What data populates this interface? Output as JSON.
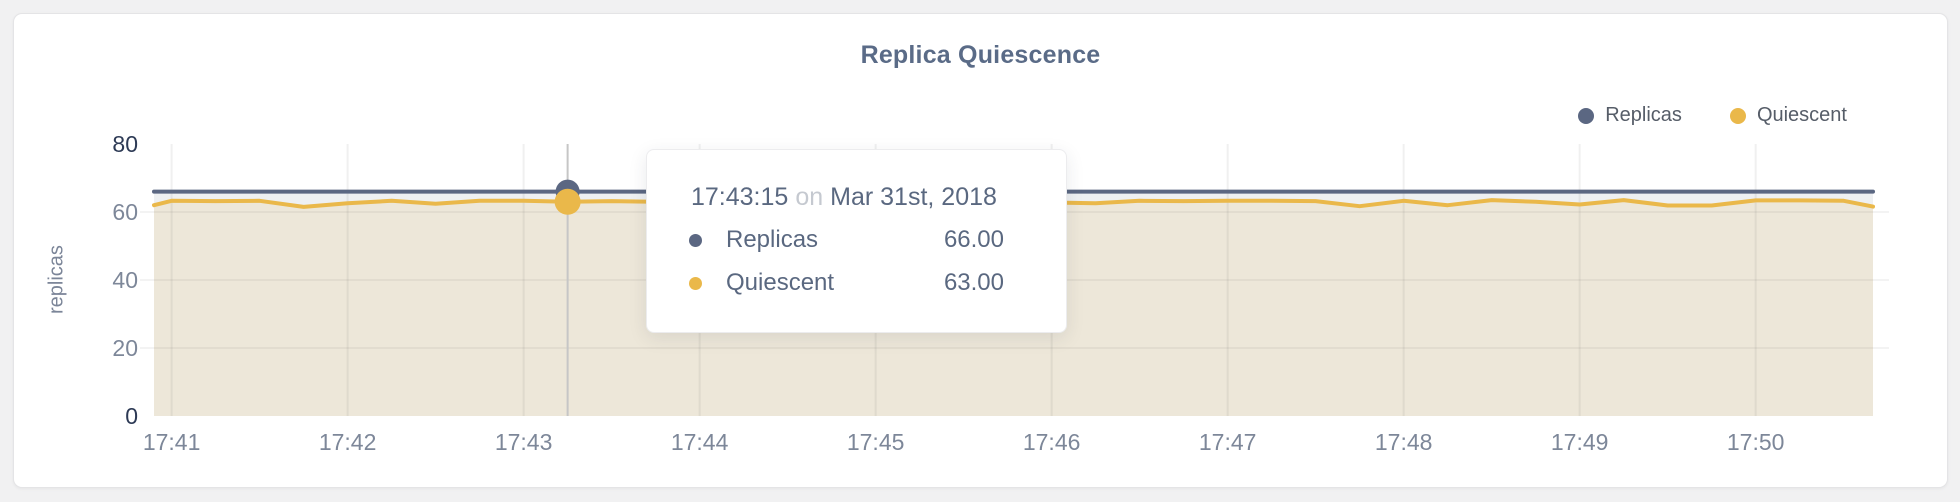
{
  "card": {
    "type": "timeseries-widget"
  },
  "chart_data": {
    "type": "line",
    "title": "Replica Quiescence",
    "xlabel": "",
    "ylabel": "replicas",
    "ylim": [
      0,
      80
    ],
    "y_ticks": [
      0,
      20,
      40,
      60,
      80
    ],
    "x_ticks": [
      "17:41",
      "17:42",
      "17:43",
      "17:44",
      "17:45",
      "17:46",
      "17:47",
      "17:48",
      "17:49",
      "17:50"
    ],
    "xlim": [
      "17:40:54",
      "17:50:40"
    ],
    "grid": "on",
    "legend_position": "top-right",
    "x": [
      "17:40:54",
      "17:41:00",
      "17:41:15",
      "17:41:30",
      "17:41:45",
      "17:42:00",
      "17:42:15",
      "17:42:30",
      "17:42:45",
      "17:43:00",
      "17:43:15",
      "17:43:30",
      "17:43:45",
      "17:44:00",
      "17:44:15",
      "17:44:30",
      "17:44:45",
      "17:45:00",
      "17:45:15",
      "17:45:30",
      "17:45:45",
      "17:46:00",
      "17:46:15",
      "17:46:30",
      "17:46:45",
      "17:47:00",
      "17:47:15",
      "17:47:30",
      "17:47:45",
      "17:48:00",
      "17:48:15",
      "17:48:30",
      "17:48:45",
      "17:49:00",
      "17:49:15",
      "17:49:30",
      "17:49:45",
      "17:50:00",
      "17:50:15",
      "17:50:30",
      "17:50:40"
    ],
    "series": [
      {
        "name": "Replicas",
        "color": "#5b6782",
        "values": [
          66,
          66,
          66,
          66,
          66,
          66,
          66,
          66,
          66,
          66,
          66,
          66,
          66,
          66,
          66,
          66,
          66,
          66,
          66,
          66,
          66,
          66,
          66,
          66,
          66,
          66,
          66,
          66,
          66,
          66,
          66,
          66,
          66,
          66,
          66,
          66,
          66,
          66,
          66,
          66,
          66
        ]
      },
      {
        "name": "Quiescent",
        "color": "#eab84a",
        "values": [
          62.0,
          63.3,
          63.2,
          63.3,
          61.5,
          62.6,
          63.3,
          62.4,
          63.3,
          63.3,
          63.0,
          63.2,
          63.0,
          63.3,
          62.5,
          63.2,
          63.3,
          62.8,
          63.3,
          63.0,
          63.3,
          62.8,
          62.6,
          63.3,
          63.2,
          63.3,
          63.3,
          63.2,
          61.7,
          63.3,
          62.0,
          63.5,
          63.0,
          62.2,
          63.5,
          61.9,
          61.9,
          63.4,
          63.4,
          63.3,
          61.6
        ]
      }
    ]
  },
  "hover": {
    "time": "17:43:15",
    "crosshair": true
  },
  "tooltip": {
    "time": "17:43:15",
    "conjunction": "on",
    "date": "Mar 31st, 2018",
    "rows": [
      {
        "label": "Replicas",
        "value": "66.00"
      },
      {
        "label": "Quiescent",
        "value": "63.00"
      }
    ]
  },
  "colors": {
    "replicas": "#5b6782",
    "quiescent": "#eab84a",
    "title_text": "#5a6b87",
    "axis_text": "#7d8799",
    "axis_text_dark": "#2d3a55",
    "grid_line": "#e9e8e6",
    "crosshair": "#c6c6c6",
    "card_background": "#ffffff",
    "page_background": "#f1f1f2"
  }
}
